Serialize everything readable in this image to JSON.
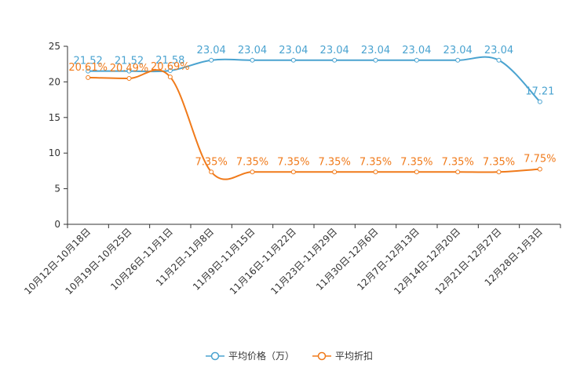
{
  "chart_data": {
    "type": "line",
    "title": "",
    "xlabel": "",
    "ylabel": "",
    "ylim": [
      0,
      25
    ],
    "yticks": [
      0,
      5,
      10,
      15,
      20,
      25
    ],
    "grid": false,
    "legend_position": "bottom-center",
    "categories": [
      "10月12日-10月18日",
      "10月19日-10月25日",
      "10月26日-11月1日",
      "11月2日-11月8日",
      "11月9日-11月15日",
      "11月16日-11月22日",
      "11月23日-11月29日",
      "11月30日-12月6日",
      "12月7日-12月13日",
      "12月14日-12月20日",
      "12月21日-12月27日",
      "12月28日-1月3日"
    ],
    "series": [
      {
        "name": "平均价格（万）",
        "color": "#4aa3d0",
        "values": [
          21.52,
          21.52,
          21.58,
          23.04,
          23.04,
          23.04,
          23.04,
          23.04,
          23.04,
          23.04,
          23.04,
          17.21
        ],
        "labels": [
          "21.52",
          "21.52",
          "21.58",
          "23.04",
          "23.04",
          "23.04",
          "23.04",
          "23.04",
          "23.04",
          "23.04",
          "23.04",
          "17.21"
        ]
      },
      {
        "name": "平均折扣",
        "color": "#f07a1a",
        "values": [
          20.61,
          20.49,
          20.69,
          7.35,
          7.35,
          7.35,
          7.35,
          7.35,
          7.35,
          7.35,
          7.35,
          7.75
        ],
        "labels": [
          "20.61%",
          "20.49%",
          "20.69%",
          "7.35%",
          "7.35%",
          "7.35%",
          "7.35%",
          "7.35%",
          "7.35%",
          "7.35%",
          "7.35%",
          "7.75%"
        ]
      }
    ]
  }
}
